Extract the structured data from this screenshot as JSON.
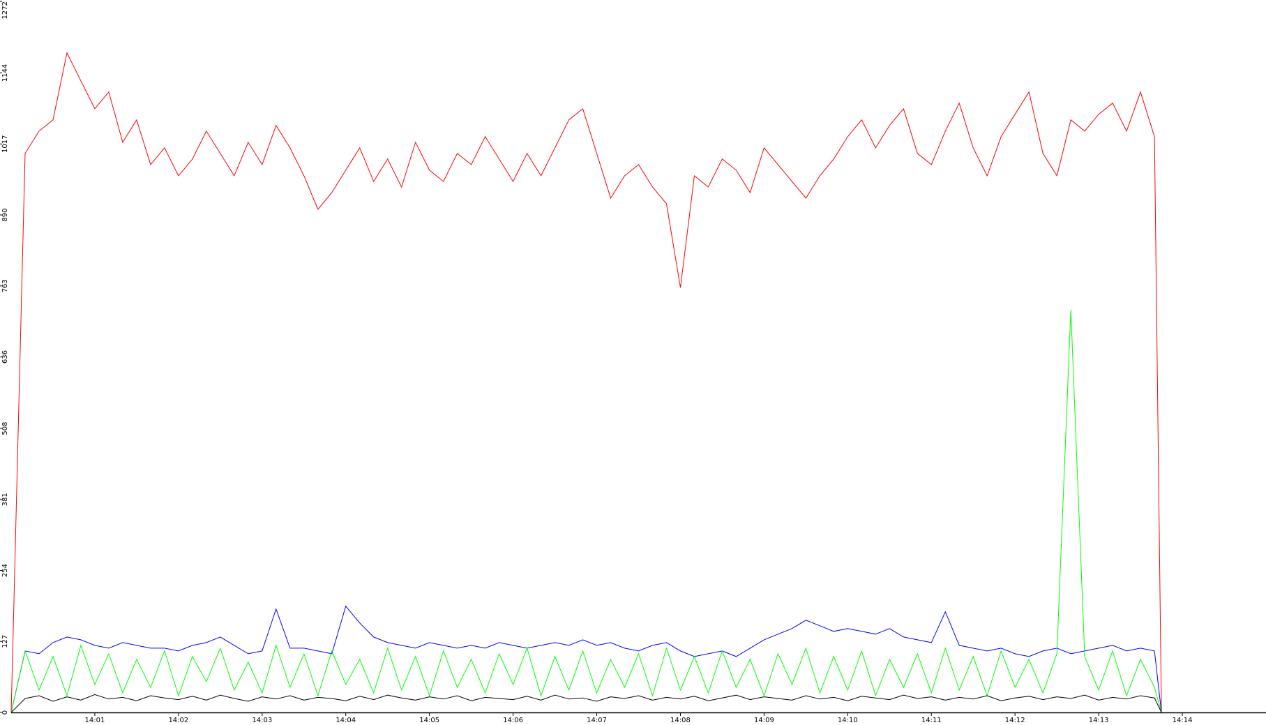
{
  "chart_data": {
    "type": "line",
    "x": [
      "14:00:00",
      "14:00:10",
      "14:00:20",
      "14:00:30",
      "14:00:40",
      "14:00:50",
      "14:01:00",
      "14:01:10",
      "14:01:20",
      "14:01:30",
      "14:01:40",
      "14:01:50",
      "14:02:00",
      "14:02:10",
      "14:02:20",
      "14:02:30",
      "14:02:40",
      "14:02:50",
      "14:03:00",
      "14:03:10",
      "14:03:20",
      "14:03:30",
      "14:03:40",
      "14:03:50",
      "14:04:00",
      "14:04:10",
      "14:04:20",
      "14:04:30",
      "14:04:40",
      "14:04:50",
      "14:05:00",
      "14:05:10",
      "14:05:20",
      "14:05:30",
      "14:05:40",
      "14:05:50",
      "14:06:00",
      "14:06:10",
      "14:06:20",
      "14:06:30",
      "14:06:40",
      "14:06:50",
      "14:07:00",
      "14:07:10",
      "14:07:20",
      "14:07:30",
      "14:07:40",
      "14:07:50",
      "14:08:00",
      "14:08:10",
      "14:08:20",
      "14:08:30",
      "14:08:40",
      "14:08:50",
      "14:09:00",
      "14:09:10",
      "14:09:20",
      "14:09:30",
      "14:09:40",
      "14:09:50",
      "14:10:00",
      "14:10:10",
      "14:10:20",
      "14:10:30",
      "14:10:40",
      "14:10:50",
      "14:11:00",
      "14:11:10",
      "14:11:20",
      "14:11:30",
      "14:11:40",
      "14:11:50",
      "14:12:00",
      "14:12:10",
      "14:12:20",
      "14:12:30",
      "14:12:40",
      "14:12:50",
      "14:13:00",
      "14:13:10",
      "14:13:20",
      "14:13:30",
      "14:13:40",
      "14:13:45"
    ],
    "series": [
      {
        "color": "#ff0000",
        "values": [
          0,
          1000,
          1040,
          1060,
          1180,
          1130,
          1080,
          1110,
          1020,
          1060,
          980,
          1010,
          960,
          990,
          1040,
          1000,
          960,
          1020,
          980,
          1050,
          1010,
          960,
          900,
          930,
          970,
          1010,
          950,
          990,
          940,
          1020,
          970,
          950,
          1000,
          980,
          1030,
          990,
          950,
          1000,
          960,
          1010,
          1060,
          1080,
          1000,
          920,
          960,
          980,
          940,
          910,
          760,
          960,
          940,
          990,
          970,
          930,
          1010,
          980,
          950,
          920,
          960,
          990,
          1030,
          1060,
          1010,
          1050,
          1080,
          1000,
          980,
          1040,
          1090,
          1010,
          960,
          1030,
          1070,
          1110,
          1000,
          960,
          1060,
          1040,
          1070,
          1090,
          1040,
          1110,
          1030,
          0
        ]
      },
      {
        "color": "#0000ff",
        "values": [
          0,
          110,
          105,
          125,
          135,
          130,
          120,
          115,
          125,
          120,
          115,
          115,
          110,
          120,
          125,
          135,
          120,
          105,
          110,
          185,
          115,
          115,
          110,
          105,
          190,
          160,
          135,
          125,
          120,
          115,
          125,
          120,
          115,
          120,
          115,
          125,
          120,
          115,
          120,
          125,
          120,
          130,
          120,
          125,
          115,
          110,
          120,
          125,
          110,
          100,
          105,
          110,
          100,
          115,
          130,
          140,
          150,
          165,
          155,
          145,
          150,
          145,
          140,
          150,
          135,
          130,
          125,
          180,
          120,
          115,
          110,
          115,
          105,
          100,
          110,
          115,
          105,
          110,
          115,
          120,
          110,
          115,
          110,
          0
        ]
      },
      {
        "color": "#00ff00",
        "values": [
          0,
          110,
          40,
          100,
          30,
          120,
          50,
          105,
          35,
          95,
          45,
          110,
          30,
          100,
          55,
          115,
          40,
          90,
          35,
          120,
          45,
          105,
          30,
          110,
          50,
          95,
          35,
          115,
          40,
          100,
          30,
          110,
          45,
          95,
          35,
          105,
          50,
          115,
          30,
          100,
          40,
          110,
          35,
          95,
          45,
          105,
          30,
          115,
          40,
          100,
          35,
          110,
          45,
          95,
          30,
          105,
          50,
          115,
          35,
          100,
          40,
          110,
          30,
          95,
          45,
          105,
          35,
          115,
          40,
          100,
          30,
          110,
          45,
          95,
          35,
          105,
          720,
          100,
          40,
          110,
          30,
          95,
          45,
          0
        ]
      },
      {
        "color": "#000000",
        "values": [
          0,
          25,
          30,
          20,
          28,
          22,
          32,
          24,
          27,
          21,
          30,
          26,
          23,
          29,
          22,
          31,
          25,
          20,
          28,
          24,
          30,
          22,
          27,
          25,
          21,
          29,
          23,
          31,
          26,
          22,
          28,
          24,
          30,
          21,
          27,
          25,
          23,
          29,
          22,
          31,
          24,
          26,
          20,
          28,
          25,
          30,
          22,
          27,
          24,
          29,
          21,
          26,
          31,
          23,
          28,
          25,
          22,
          30,
          24,
          27,
          21,
          29,
          26,
          23,
          31,
          25,
          28,
          22,
          27,
          24,
          30,
          21,
          26,
          29,
          23,
          28,
          25,
          31,
          22,
          27,
          24,
          30,
          26,
          0
        ]
      }
    ],
    "xlim": [
      "14:00:00",
      "14:15:00"
    ],
    "xticks": [
      {
        "value": "14:01:00",
        "label": "14:01"
      },
      {
        "value": "14:02:00",
        "label": "14:02"
      },
      {
        "value": "14:03:00",
        "label": "14:03"
      },
      {
        "value": "14:04:00",
        "label": "14:04"
      },
      {
        "value": "14:05:00",
        "label": "14:05"
      },
      {
        "value": "14:06:00",
        "label": "14:06"
      },
      {
        "value": "14:07:00",
        "label": "14:07"
      },
      {
        "value": "14:08:00",
        "label": "14:08"
      },
      {
        "value": "14:09:00",
        "label": "14:09"
      },
      {
        "value": "14:10:00",
        "label": "14:10"
      },
      {
        "value": "14:11:00",
        "label": "14:11"
      },
      {
        "value": "14:12:00",
        "label": "14:12"
      },
      {
        "value": "14:13:00",
        "label": "14:13"
      },
      {
        "value": "14:14:00",
        "label": "14:14"
      }
    ],
    "ylim": [
      0,
      1272
    ],
    "yticks": [
      0,
      127,
      254,
      381,
      508,
      636,
      763,
      890,
      1017,
      1144,
      1272
    ]
  }
}
